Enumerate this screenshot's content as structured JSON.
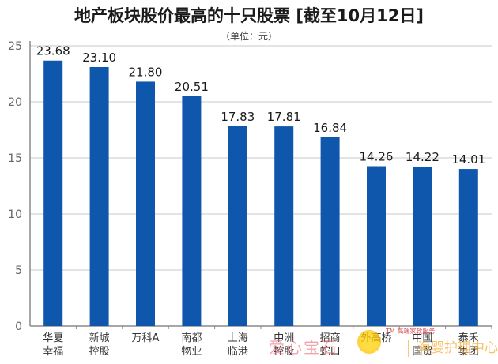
{
  "header": {
    "title": "地产板块股价最高的十只股票 [截至10月12日]",
    "subtitle": "（单位：元）"
  },
  "colors": {
    "bar": "#0f56ad",
    "axis": "#8a8a8a",
    "grid": "#c8c8c8"
  },
  "watermark": {
    "left": "爱心宝石",
    "right": "海婴护理中心",
    "small": "TM 高端家政服务"
  },
  "chart_data": {
    "type": "bar",
    "title": "地产板块股价最高的十只股票 [截至10月12日]",
    "subtitle": "（单位：元）",
    "categories": [
      [
        "华夏",
        "幸福"
      ],
      [
        "新城",
        "控股"
      ],
      [
        "万科A"
      ],
      [
        "南都",
        "物业"
      ],
      [
        "上海",
        "临港"
      ],
      [
        "中洲",
        "控股"
      ],
      [
        "招商",
        "蛇口"
      ],
      [
        "外高桥"
      ],
      [
        "中国",
        "国贸"
      ],
      [
        "泰禾",
        "集团"
      ]
    ],
    "values": [
      23.68,
      23.1,
      21.8,
      20.51,
      17.83,
      17.81,
      16.84,
      14.26,
      14.22,
      14.01
    ],
    "value_labels": [
      "23.68",
      "23.10",
      "21.80",
      "20.51",
      "17.83",
      "17.81",
      "16.84",
      "14.26",
      "14.22",
      "14.01"
    ],
    "y_ticks": [
      "0",
      "5",
      "10",
      "15",
      "20",
      "25"
    ],
    "ylim": [
      0,
      25
    ],
    "xlabel": "",
    "ylabel": "",
    "grid": true
  }
}
